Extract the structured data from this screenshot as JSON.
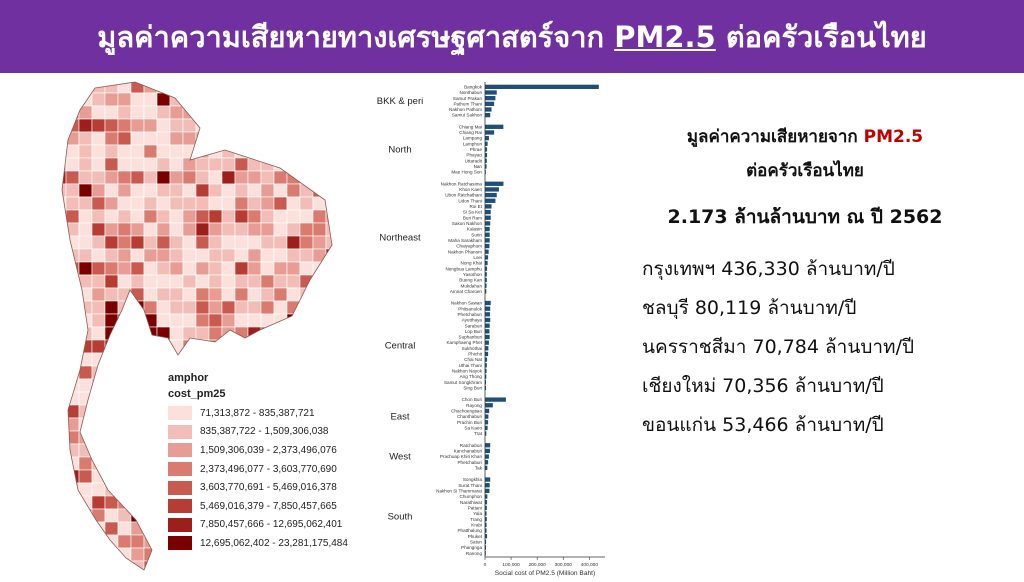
{
  "header": {
    "title_prefix": "มูลค่าความเสียหายทางเศรษฐศาสตร์จาก",
    "title_pm": "PM2.5",
    "title_suffix": "ต่อครัวเรือนไทย"
  },
  "map": {
    "legend_title": "amphor",
    "legend_subtitle": "cost_pm25",
    "bins": [
      {
        "label": "71,313,872 - 835,387,721",
        "color": "#fbe0dc"
      },
      {
        "label": "835,387,722 - 1,509,306,038",
        "color": "#f2bdb6"
      },
      {
        "label": "1,509,306,039 - 2,373,496,076",
        "color": "#e79d93"
      },
      {
        "label": "2,373,496,077 - 3,603,770,690",
        "color": "#d97b6f"
      },
      {
        "label": "3,603,770,691 - 5,469,016,378",
        "color": "#c95a4f"
      },
      {
        "label": "5,469,016,379 - 7,850,457,665",
        "color": "#b73c33"
      },
      {
        "label": "7,850,457,666 - 12,695,062,401",
        "color": "#9c1f1b"
      },
      {
        "label": "12,695,062,402 - 23,281,175,484",
        "color": "#7a0000"
      }
    ]
  },
  "info": {
    "title_prefix": "มูลค่าความเสียหายจาก",
    "title_pm": "PM2.5",
    "title_line2": "ต่อครัวเรือนไทย",
    "total": "2.173 ล้านล้านบาท ณ ปี 2562",
    "cities": [
      "กรุงเทพฯ 436,330 ล้านบาท/ปี",
      "ชลบุรี 80,119 ล้านบาท/ปี",
      "นครราชสีมา 70,784 ล้านบาท/ปี",
      "เชียงใหม่ 70,356 ล้านบาท/ปี",
      "ขอนแก่น 53,466 ล้านบาท/ปี"
    ]
  },
  "chart_data": {
    "type": "bar",
    "orientation": "horizontal",
    "xlabel": "Social cost of PM2.5 (Million Baht)",
    "xlim": [
      0,
      460000
    ],
    "xticks": [
      0,
      100000,
      200000,
      300000,
      400000
    ],
    "xtick_labels": [
      "0",
      "100,000",
      "200,000",
      "300,000",
      "400,000"
    ],
    "bar_color": "#1f4e79",
    "groups": [
      {
        "name": "BKK & peri",
        "categories": [
          "Bangkok",
          "Nonthaburi",
          "Samut Prakan",
          "Pathum Thani",
          "Nakhon Pathom",
          "Samut Sakhon"
        ],
        "values": [
          436330,
          45000,
          40000,
          35000,
          25000,
          20000
        ]
      },
      {
        "name": "North",
        "categories": [
          "Chiang Mai",
          "Chiang Rai",
          "Lampang",
          "Lamphun",
          "Phrae",
          "Phayao",
          "Uttaradit",
          "Nan",
          "Mae Hong Son"
        ],
        "values": [
          70356,
          35000,
          15000,
          10000,
          8000,
          8000,
          7000,
          6000,
          3000
        ]
      },
      {
        "name": "Northeast",
        "categories": [
          "Nakhon Ratchasima",
          "Khon Kaen",
          "Ubon Ratchathani",
          "Udon Thani",
          "Roi Et",
          "Si Sa Ket",
          "Buri Ram",
          "Sakon Nakhon",
          "Kalasin",
          "Surin",
          "Maha Sarakham",
          "Chaiyaphum",
          "Nakhon Phanom",
          "Loei",
          "Nong Khai",
          "Nongbua Lamphu",
          "Yasothon",
          "Bueng Kan",
          "Mukdahan",
          "Amnat Charoen"
        ],
        "values": [
          70784,
          53466,
          45000,
          40000,
          25000,
          22000,
          22000,
          20000,
          18000,
          18000,
          18000,
          17000,
          14000,
          12000,
          10000,
          8000,
          7000,
          7000,
          6000,
          5000
        ]
      },
      {
        "name": "Central",
        "categories": [
          "Nakhon Sawan",
          "Phitsanulok",
          "Phetchabun",
          "Ayutthaya",
          "Saraburi",
          "Lop Buri",
          "Suphanburi",
          "Kamphaeng Phet",
          "Sukhothai",
          "Phichit",
          "Chai Nat",
          "Uthai Thani",
          "Nakhon Nayok",
          "Ang Thong",
          "Samut Songkhram",
          "Sing Buri"
        ],
        "values": [
          22000,
          20000,
          19000,
          20000,
          18000,
          17000,
          18000,
          15000,
          13000,
          12000,
          8000,
          7000,
          6000,
          5000,
          4000,
          4000
        ]
      },
      {
        "name": "East",
        "categories": [
          "Chon Buri",
          "Rayong",
          "Chachoengsao",
          "Chanthaburi",
          "Prachin Buri",
          "Sa Kaeo",
          "Trat"
        ],
        "values": [
          80119,
          30000,
          16000,
          13000,
          12000,
          10000,
          5000
        ]
      },
      {
        "name": "West",
        "categories": [
          "Ratchaburi",
          "Kanchanaburi",
          "Prachuap Khiri Khan",
          "Phetchaburi",
          "Tak"
        ],
        "values": [
          20000,
          19000,
          15000,
          12000,
          9000
        ]
      },
      {
        "name": "South",
        "categories": [
          "Songkhla",
          "Surat Thani",
          "Nakhon Si Thammarat",
          "Chumphon",
          "Narathiwat",
          "Pattani",
          "Yala",
          "Trang",
          "Krabi",
          "Phatthalung",
          "Phuket",
          "Satun",
          "Phangnga",
          "Ranong"
        ],
        "values": [
          20000,
          18000,
          17000,
          9000,
          8000,
          7000,
          6000,
          7000,
          6000,
          6000,
          8000,
          4000,
          4000,
          3000
        ]
      }
    ]
  }
}
